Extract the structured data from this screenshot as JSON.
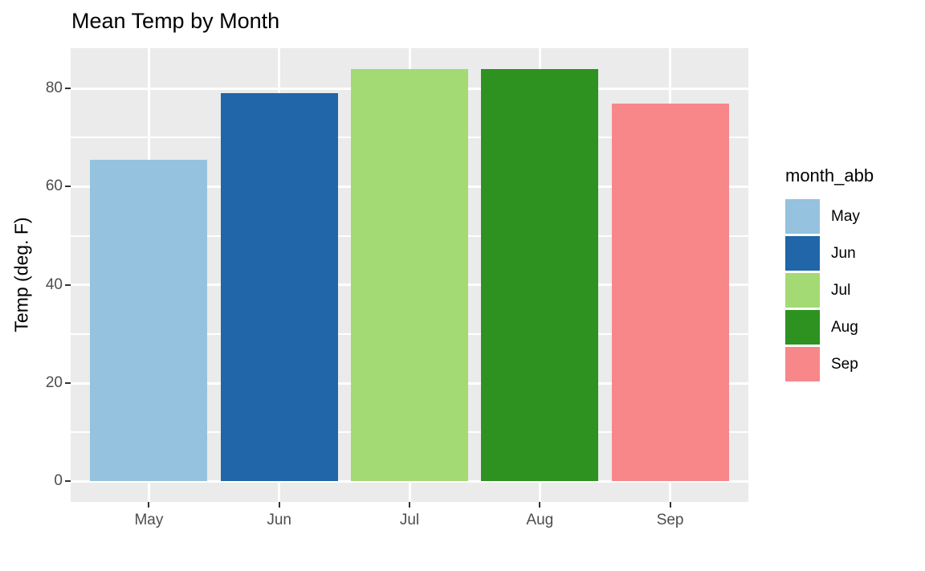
{
  "chart_data": {
    "type": "bar",
    "title": "Mean Temp by Month",
    "xlabel": "",
    "ylabel": "Temp (deg. F)",
    "categories": [
      "May",
      "Jun",
      "Jul",
      "Aug",
      "Sep"
    ],
    "values": [
      65.5,
      79,
      84,
      84,
      77
    ],
    "bar_colors": [
      "#95C2DE",
      "#2066A8",
      "#A3DA74",
      "#2E9221",
      "#F8878A"
    ],
    "y_ticks": [
      0,
      20,
      40,
      60,
      80
    ],
    "y_tick_labels": [
      "0",
      "20",
      "40",
      "60",
      "80"
    ],
    "y_minor_ticks": [
      10,
      30,
      50,
      70
    ],
    "ylim": [
      -4.2,
      88.2
    ],
    "grid": true,
    "legend": {
      "title": "month_abb",
      "position": "right",
      "entries": [
        {
          "label": "May",
          "color": "#95C2DE"
        },
        {
          "label": "Jun",
          "color": "#2066A8"
        },
        {
          "label": "Jul",
          "color": "#A3DA74"
        },
        {
          "label": "Aug",
          "color": "#2E9221"
        },
        {
          "label": "Sep",
          "color": "#F8878A"
        }
      ]
    },
    "colors": {
      "panel_bg": "#EBEBEB",
      "grid": "#FFFFFF",
      "tick_label": "#4D4D4D",
      "tick_mark": "#333333",
      "title_text": "#000000"
    }
  }
}
